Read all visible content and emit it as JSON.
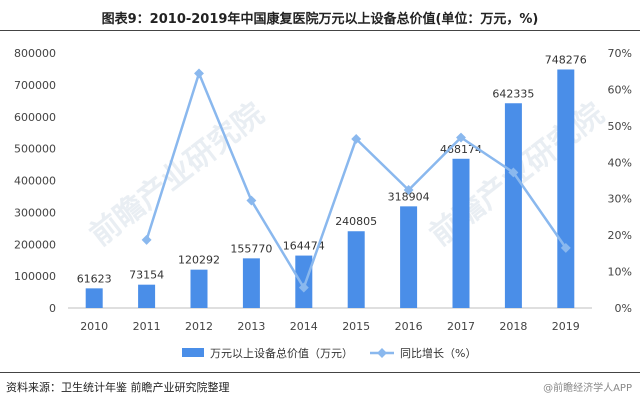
{
  "chart_data": {
    "type": "bar",
    "title": "图表9：2010-2019年中国康复医院万元以上设备总价值(单位：万元，%)",
    "categories": [
      "2010",
      "2011",
      "2012",
      "2013",
      "2014",
      "2015",
      "2016",
      "2017",
      "2018",
      "2019"
    ],
    "series": [
      {
        "name": "万元以上设备总价值（万元）",
        "type": "bar",
        "axis": "left",
        "color": "#4a8ee8",
        "values": [
          61623,
          73154,
          120292,
          155770,
          164474,
          240805,
          318904,
          468174,
          642335,
          748276
        ]
      },
      {
        "name": "同比增长（%）",
        "type": "line",
        "axis": "right",
        "color": "#8ab8ee",
        "values": [
          null,
          18.7,
          64.4,
          29.5,
          5.6,
          46.4,
          32.4,
          46.8,
          37.2,
          16.5
        ]
      }
    ],
    "left_axis": {
      "min": 0,
      "max": 800000,
      "step": 100000,
      "ticks": [
        "0",
        "100000",
        "200000",
        "300000",
        "400000",
        "500000",
        "600000",
        "700000",
        "800000"
      ]
    },
    "right_axis": {
      "min": 0,
      "max": 70,
      "step": 10,
      "ticks": [
        "0%",
        "10%",
        "20%",
        "30%",
        "40%",
        "50%",
        "60%",
        "70%"
      ]
    },
    "data_labels": [
      "61623",
      "73154",
      "120292",
      "155770",
      "164474",
      "240805",
      "318904",
      "468174",
      "642335",
      "748276"
    ],
    "legend_position": "bottom",
    "grid": false
  },
  "source": "资料来源：卫生统计年鉴 前瞻产业研究院整理",
  "watermark": "前瞻产业研究院",
  "app_mark": "@前瞻经济学人APP"
}
